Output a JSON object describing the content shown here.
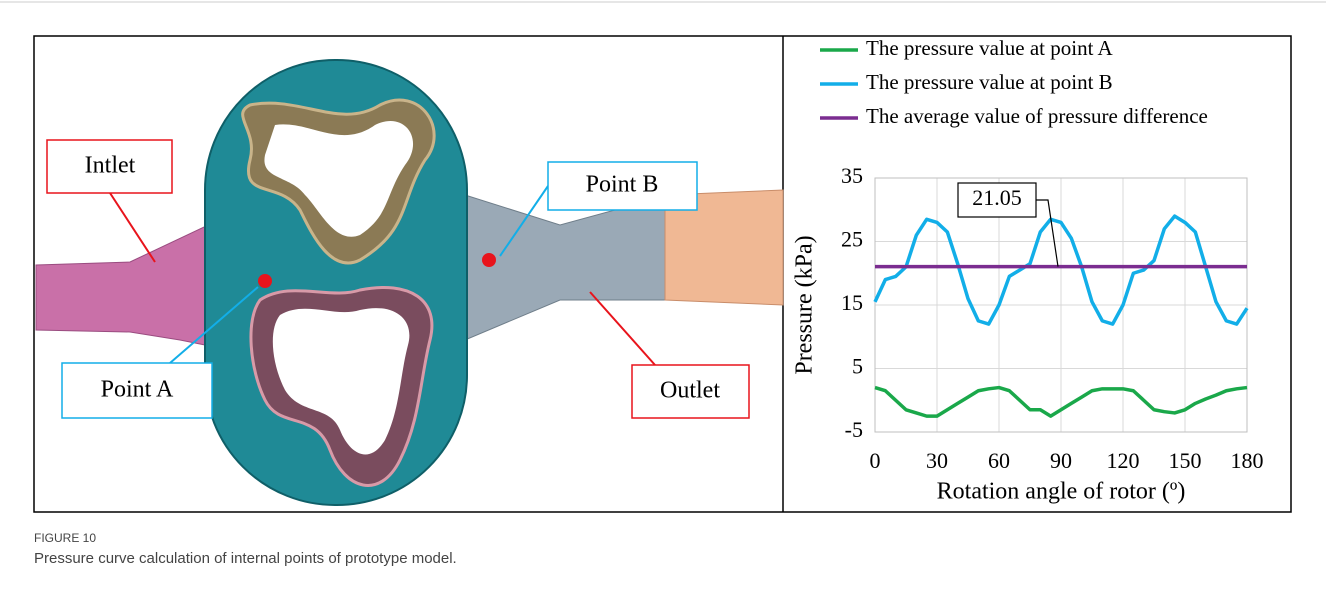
{
  "figure": {
    "labels": {
      "inlet": "Intlet",
      "point_b": "Point B",
      "point_a": "Point A",
      "outlet": "Outlet"
    }
  },
  "chart_data": {
    "type": "line",
    "xlabel": "Rotation angle of rotor (º)",
    "ylabel": "Pressure (kPa)",
    "x": [
      0,
      5,
      10,
      15,
      20,
      25,
      30,
      35,
      40,
      45,
      50,
      55,
      60,
      65,
      70,
      75,
      80,
      85,
      90,
      95,
      100,
      105,
      110,
      115,
      120,
      125,
      130,
      135,
      140,
      145,
      150,
      155,
      160,
      165,
      170,
      175,
      180
    ],
    "series": [
      {
        "name": "The pressure value at point A",
        "color": "#1aa84a",
        "values": [
          2,
          1.5,
          0,
          -1.5,
          -2,
          -2.5,
          -2.5,
          -1.5,
          -0.5,
          0.5,
          1.5,
          1.8,
          2,
          1.5,
          0,
          -1.5,
          -1.5,
          -2.5,
          -1.5,
          -0.5,
          0.5,
          1.5,
          1.8,
          1.8,
          1.8,
          1.5,
          0,
          -1.5,
          -1.8,
          -2,
          -1.5,
          -0.5,
          0.2,
          0.8,
          1.5,
          1.8,
          2
        ]
      },
      {
        "name": "The pressure value at point B",
        "color": "#12aee8",
        "values": [
          15.5,
          19,
          19.5,
          21,
          26,
          28.5,
          28,
          26.5,
          21.5,
          16,
          12.5,
          12,
          15,
          19.5,
          20.5,
          21.5,
          26.5,
          28.5,
          28,
          25.5,
          21,
          15.5,
          12.5,
          12,
          15,
          20,
          20.5,
          22,
          27,
          29,
          28,
          26.5,
          21,
          15.5,
          12.5,
          12,
          14.5
        ]
      }
    ],
    "hlines": [
      {
        "name": "The average value of pressure difference",
        "color": "#7b2d90",
        "value": 21.05
      }
    ],
    "xlim": [
      0,
      180
    ],
    "xticks": [
      0,
      30,
      60,
      90,
      120,
      150,
      180
    ],
    "ylim": [
      -5,
      35
    ],
    "yticks": [
      -5,
      5,
      15,
      25,
      35
    ],
    "grid": true
  },
  "caption": {
    "label": "FIGURE 10",
    "text": "Pressure curve calculation of internal points of prototype model."
  }
}
